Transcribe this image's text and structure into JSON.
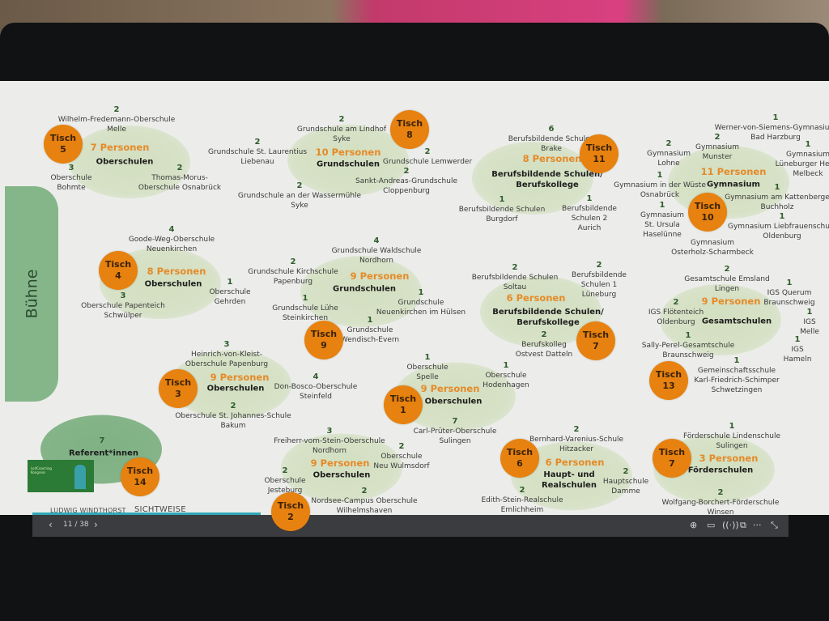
{
  "stage_label": "Bühne",
  "colors": {
    "table": "#e7810f",
    "persons": "#e58a28",
    "blob": "#d3dfc0",
    "stage": "#85b689",
    "count": "#2f5c2b"
  },
  "table_word": "Tisch",
  "groups": [
    {
      "table": "5",
      "persons": "7 Personen",
      "category": [
        "Oberschulen"
      ],
      "schools": [
        {
          "count": "2",
          "lines": [
            "Wilhelm-Fredemann-Oberschule",
            "Melle"
          ]
        },
        {
          "count": "3",
          "lines": [
            "Oberschule",
            "Bohmte"
          ]
        },
        {
          "count": "2",
          "lines": [
            "Thomas-Morus-",
            "Oberschule Osnabrück"
          ]
        }
      ]
    },
    {
      "table": "8",
      "persons": "10 Personen",
      "category": [
        "Grundschulen"
      ],
      "schools": [
        {
          "count": "2",
          "lines": [
            "Grundschule am Lindhof",
            "Syke"
          ]
        },
        {
          "count": "2",
          "lines": [
            "Grundschule St. Laurentius",
            "Liebenau"
          ]
        },
        {
          "count": "2",
          "lines": [
            "Grundschule Lemwerder"
          ]
        },
        {
          "count": "2",
          "lines": [
            "Grundschule an der Wassermühle",
            "Syke"
          ]
        },
        {
          "count": "2",
          "lines": [
            "Sankt-Andreas-Grundschule",
            "Cloppenburg"
          ]
        }
      ]
    },
    {
      "table": "11",
      "persons": "8 Personen",
      "category": [
        "Berufsbildende Schulen/",
        "Berufskollege"
      ],
      "schools": [
        {
          "count": "6",
          "lines": [
            "Berufsbildende Schulen",
            "Brake"
          ]
        },
        {
          "count": "1",
          "lines": [
            "Berufsbildende Schulen",
            "Burgdorf"
          ]
        },
        {
          "count": "1",
          "lines": [
            "Berufsbildende",
            "Schulen 2",
            "Aurich"
          ]
        }
      ]
    },
    {
      "table": "10",
      "persons": "11 Personen",
      "category": [
        "Gymnasium"
      ],
      "schools": [
        {
          "count": "1",
          "lines": [
            "Werner-von-Siemens-Gymnasium",
            "Bad Harzburg"
          ]
        },
        {
          "count": "2",
          "lines": [
            "Gymnasium",
            "Munster"
          ]
        },
        {
          "count": "2",
          "lines": [
            "Gymnasium",
            "Lohne"
          ]
        },
        {
          "count": "1",
          "lines": [
            "Gymnasium",
            "Lüneburger Heide",
            "Melbeck"
          ]
        },
        {
          "count": "1",
          "lines": [
            "Gymnasium in der Wüste",
            "Osnabrück"
          ]
        },
        {
          "count": "1",
          "lines": [
            "Gymnasium am Kattenberge",
            "Buchholz"
          ]
        },
        {
          "count": "1",
          "lines": [
            "Gymnasium",
            "St. Ursula",
            "Haselünne"
          ]
        },
        {
          "count": "1",
          "lines": [
            "Gymnasium Liebfrauenschule",
            "Oldenburg"
          ]
        },
        {
          "count": "",
          "lines": [
            "Gymnasium",
            "Osterholz-Scharmbeck"
          ]
        }
      ]
    },
    {
      "table": "4",
      "persons": "8 Personen",
      "category": [
        "Oberschulen"
      ],
      "schools": [
        {
          "count": "4",
          "lines": [
            "Goode-Weg-Oberschule",
            "Neuenkirchen"
          ]
        },
        {
          "count": "3",
          "lines": [
            "Oberschule Papenteich",
            "Schwülper"
          ]
        },
        {
          "count": "1",
          "lines": [
            "Oberschule",
            "Gehrden"
          ]
        }
      ]
    },
    {
      "table": "9",
      "persons": "9 Personen",
      "category": [
        "Grundschulen"
      ],
      "schools": [
        {
          "count": "4",
          "lines": [
            "Grundschule Waldschule",
            "Nordhorn"
          ]
        },
        {
          "count": "2",
          "lines": [
            "Grundschule Kirchschule",
            "Papenburg"
          ]
        },
        {
          "count": "1",
          "lines": [
            "Grundschule Lühe",
            "Steinkirchen"
          ]
        },
        {
          "count": "1",
          "lines": [
            "Grundschule",
            "Neuenkirchen im Hülsen"
          ]
        },
        {
          "count": "1",
          "lines": [
            "Grundschule",
            "Wendisch-Evern"
          ]
        }
      ]
    },
    {
      "table": "7",
      "persons": "6 Personen",
      "category": [
        "Berufsbildende Schulen/",
        "Berufskollege"
      ],
      "schools": [
        {
          "count": "2",
          "lines": [
            "Berufsbildende Schulen",
            "Soltau"
          ]
        },
        {
          "count": "2",
          "lines": [
            "Berufsbildende",
            "Schulen 1",
            "Lüneburg"
          ]
        },
        {
          "count": "2",
          "lines": [
            "Berufskolleg",
            "Ostvest Datteln"
          ]
        }
      ]
    },
    {
      "table": "13",
      "persons": "9 Personen",
      "category": [
        "Gesamtschulen"
      ],
      "schools": [
        {
          "count": "2",
          "lines": [
            "Gesamtschule Emsland",
            "Lingen"
          ]
        },
        {
          "count": "2",
          "lines": [
            "IGS Flötenteich",
            "Oldenburg"
          ]
        },
        {
          "count": "1",
          "lines": [
            "IGS Querum",
            "Braunschweig"
          ]
        },
        {
          "count": "1",
          "lines": [
            "IGS",
            "Melle"
          ]
        },
        {
          "count": "1",
          "lines": [
            "IGS",
            "Hameln"
          ]
        },
        {
          "count": "1",
          "lines": [
            "Sally-Perel-Gesamtschule",
            "Braunschweig"
          ]
        },
        {
          "count": "1",
          "lines": [
            "Gemeinschaftsschule",
            "Karl-Friedrich-Schimper",
            "Schwetzingen"
          ]
        }
      ]
    },
    {
      "table": "3",
      "persons": "9 Personen",
      "category": [
        "Oberschulen"
      ],
      "schools": [
        {
          "count": "3",
          "lines": [
            "Heinrich-von-Kleist-",
            "Oberschule Papenburg"
          ]
        },
        {
          "count": "4",
          "lines": [
            "Don-Bosco-Oberschule",
            "Steinfeld"
          ]
        },
        {
          "count": "2",
          "lines": [
            "Oberschule St. Johannes-Schule",
            "Bakum"
          ]
        }
      ]
    },
    {
      "table": "1",
      "persons": "9 Personen",
      "category": [
        "Oberschulen"
      ],
      "schools": [
        {
          "count": "1",
          "lines": [
            "Oberschule",
            "Spelle"
          ]
        },
        {
          "count": "1",
          "lines": [
            "Oberschule",
            "Hodenhagen"
          ]
        },
        {
          "count": "7",
          "lines": [
            "Carl-Prüter-Oberschule",
            "Sulingen"
          ]
        }
      ]
    },
    {
      "table": "14",
      "persons": "",
      "category": [
        "Referent*innen"
      ],
      "count": "7",
      "schools": []
    },
    {
      "table": "2",
      "persons": "9 Personen",
      "category": [
        "Oberschulen"
      ],
      "schools": [
        {
          "count": "3",
          "lines": [
            "Freiherr-vom-Stein-Oberschule",
            "Nordhorn"
          ]
        },
        {
          "count": "2",
          "lines": [
            "Oberschule",
            "Neu Wulmsdorf"
          ]
        },
        {
          "count": "2",
          "lines": [
            "Oberschule",
            "Jesteburg"
          ]
        },
        {
          "count": "2",
          "lines": [
            "Nordsee-Campus Oberschule",
            "Wilhelmshaven"
          ]
        }
      ]
    },
    {
      "table": "6",
      "persons": "6 Personen",
      "category": [
        "Haupt- und",
        "Realschulen"
      ],
      "schools": [
        {
          "count": "2",
          "lines": [
            "Bernhard-Varenius-Schule",
            "Hitzacker"
          ]
        },
        {
          "count": "2",
          "lines": [
            "Hauptschule",
            "Damme"
          ]
        },
        {
          "count": "2",
          "lines": [
            "Edith-Stein-Realschule",
            "Emlichheim"
          ]
        }
      ]
    },
    {
      "table": "7",
      "persons": "3 Personen",
      "category": [
        "Förderschulen"
      ],
      "schools": [
        {
          "count": "1",
          "lines": [
            "Förderschule Lindenschule",
            "Sulingen"
          ]
        },
        {
          "count": "2",
          "lines": [
            "Wolfgang-Borchert-Förderschule",
            "Winsen"
          ]
        }
      ]
    }
  ],
  "logos": {
    "left": "LUDWIG WINDTHORST",
    "right": "SICHTWEISE"
  },
  "viewer": {
    "prev": "‹",
    "page": "11 / 38",
    "next": "›",
    "icons": [
      "zoom-icon",
      "captions-icon",
      "broadcast-icon",
      "windows-icon",
      "more-icon",
      "exit-fullscreen-icon"
    ]
  }
}
